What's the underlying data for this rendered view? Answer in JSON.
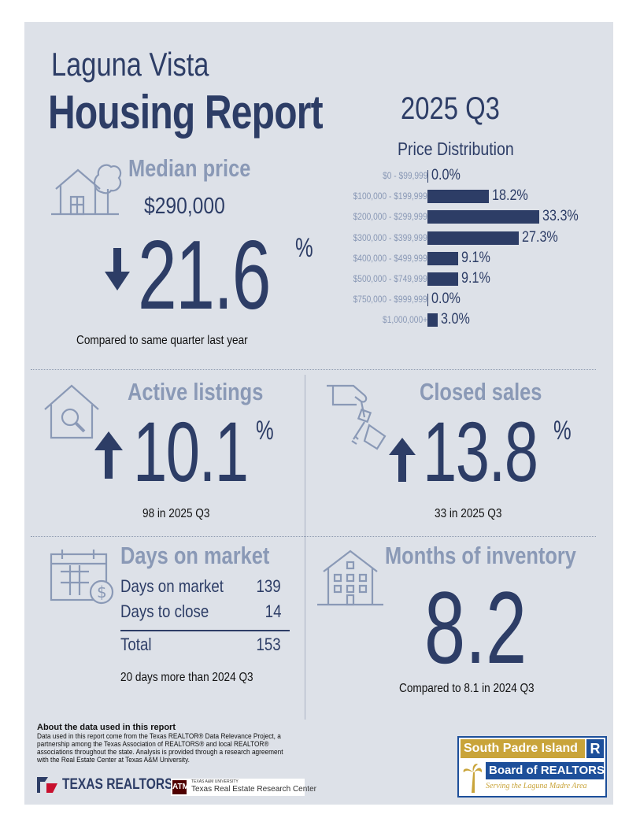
{
  "header": {
    "city": "Laguna Vista",
    "report_title": "Housing Report",
    "quarter": "2025 Q3"
  },
  "price_distribution": {
    "title": "Price Distribution",
    "rows": [
      {
        "label": "$0 - $99,999",
        "value": "0.0%",
        "pct": 0.0
      },
      {
        "label": "$100,000 - $199,999",
        "value": "18.2%",
        "pct": 18.2
      },
      {
        "label": "$200,000 - $299,999",
        "value": "33.3%",
        "pct": 33.3
      },
      {
        "label": "$300,000 - $399,999",
        "value": "27.3%",
        "pct": 27.3
      },
      {
        "label": "$400,000 - $499,999",
        "value": "9.1%",
        "pct": 9.1
      },
      {
        "label": "$500,000 - $749,999",
        "value": "9.1%",
        "pct": 9.1
      },
      {
        "label": "$750,000 - $999,999",
        "value": "0.0%",
        "pct": 0.0
      },
      {
        "label": "$1,000,000+",
        "value": "3.0%",
        "pct": 3.0
      }
    ]
  },
  "median_price": {
    "heading": "Median price",
    "price": "$290,000",
    "change": "21.6",
    "pct_sign": "%",
    "direction": "down",
    "note": "Compared to same quarter last year"
  },
  "active_listings": {
    "heading": "Active listings",
    "change": "10.1",
    "pct_sign": "%",
    "direction": "up",
    "note": "98 in 2025 Q3"
  },
  "closed_sales": {
    "heading": "Closed sales",
    "change": "13.8",
    "pct_sign": "%",
    "direction": "up",
    "note": "33 in 2025 Q3"
  },
  "days_on_market": {
    "heading": "Days on market",
    "rows": [
      {
        "label": "Days on market",
        "value": "139"
      },
      {
        "label": "Days to close",
        "value": "14"
      }
    ],
    "total_label": "Total",
    "total_value": "153",
    "note": "20 days more than 2024 Q3"
  },
  "months_inventory": {
    "heading": "Months of inventory",
    "value": "8.2",
    "note": "Compared to 8.1 in 2024 Q3"
  },
  "about": {
    "heading": "About the data used in this report",
    "text": "Data used in this report come from the Texas REALTOR® Data Relevance Project, a partnership among the Texas Association of REALTORS® and local REALTOR® associations throughout the state. Analysis is provided through a research agreement with the Real Estate Center at Texas A&M University."
  },
  "logos": {
    "texas_realtors": "TEXAS REALTORS",
    "tamu_small": "TEXAS A&M UNIVERSITY",
    "tamu_center": "Texas Real Estate Research Center",
    "board_line1": "South Padre Island",
    "board_line2": "Board of REALTORS",
    "board_tagline": "Serving the Laguna Madre Area"
  },
  "colors": {
    "navy": "#2d3d66",
    "muted": "#8a99b6",
    "panel": "#dde1e8",
    "gold": "#c9a43a",
    "board_blue": "#1d4f9a"
  }
}
